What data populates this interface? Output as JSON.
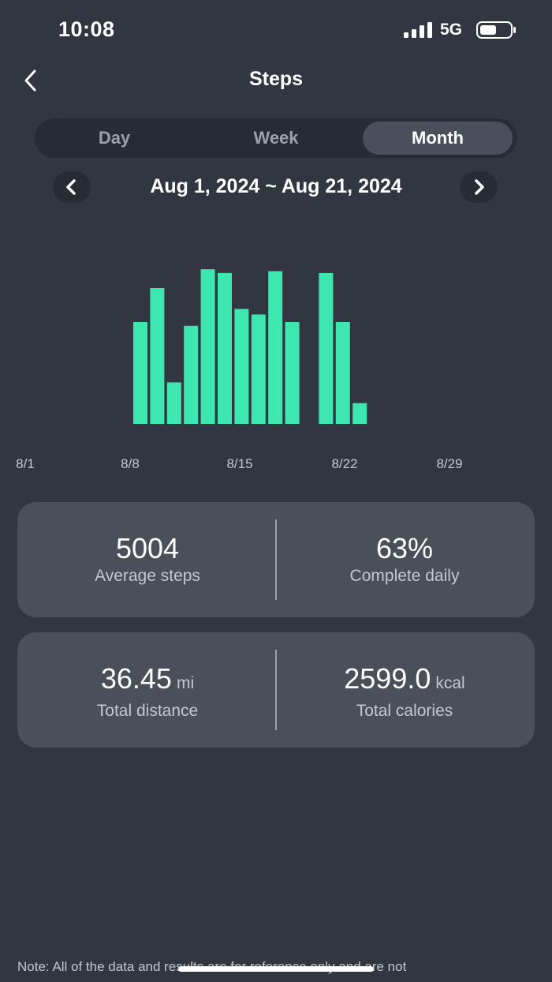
{
  "status_bar": {
    "time": "10:08",
    "network": "5G",
    "icons": [
      "signal-icon",
      "battery-icon"
    ]
  },
  "header": {
    "title": "Steps",
    "back_icon": "chevron-left-icon"
  },
  "tabs": [
    {
      "label": "Day",
      "selected": false
    },
    {
      "label": "Week",
      "selected": false
    },
    {
      "label": "Month",
      "selected": true
    }
  ],
  "date_nav": {
    "range": "Aug 1, 2024 ~ Aug 21, 2024",
    "prev_icon": "chevron-left-icon",
    "next_icon": "chevron-right-icon"
  },
  "chart_data": {
    "type": "bar",
    "x_ticks": [
      "8/1",
      "8/8",
      "8/15",
      "8/22",
      "8/29"
    ],
    "bars": [
      {
        "day": 8,
        "value": 5400
      },
      {
        "day": 9,
        "value": 7200
      },
      {
        "day": 10,
        "value": 2200
      },
      {
        "day": 11,
        "value": 5200
      },
      {
        "day": 12,
        "value": 8200
      },
      {
        "day": 13,
        "value": 8000
      },
      {
        "day": 14,
        "value": 6100
      },
      {
        "day": 15,
        "value": 5800
      },
      {
        "day": 16,
        "value": 8100
      },
      {
        "day": 17,
        "value": 5400
      },
      {
        "day": 19,
        "value": 8000
      },
      {
        "day": 20,
        "value": 5400
      },
      {
        "day": 21,
        "value": 1100
      }
    ],
    "bar_color": "#3ee6b0",
    "ylim": [
      0,
      9000
    ]
  },
  "stats": {
    "average_steps": {
      "value": "5004",
      "label": "Average steps"
    },
    "complete_daily": {
      "value": "63%",
      "label": "Complete daily"
    },
    "total_distance": {
      "value": "36.45",
      "unit": "mi",
      "label": "Total distance"
    },
    "total_calories": {
      "value": "2599.0",
      "unit": "kcal",
      "label": "Total calories"
    }
  },
  "note": "Note: All of the data and results are for reference only and are not",
  "colors": {
    "background": "#323640",
    "card": "#4a4f59",
    "accent": "#3ee6b0"
  }
}
